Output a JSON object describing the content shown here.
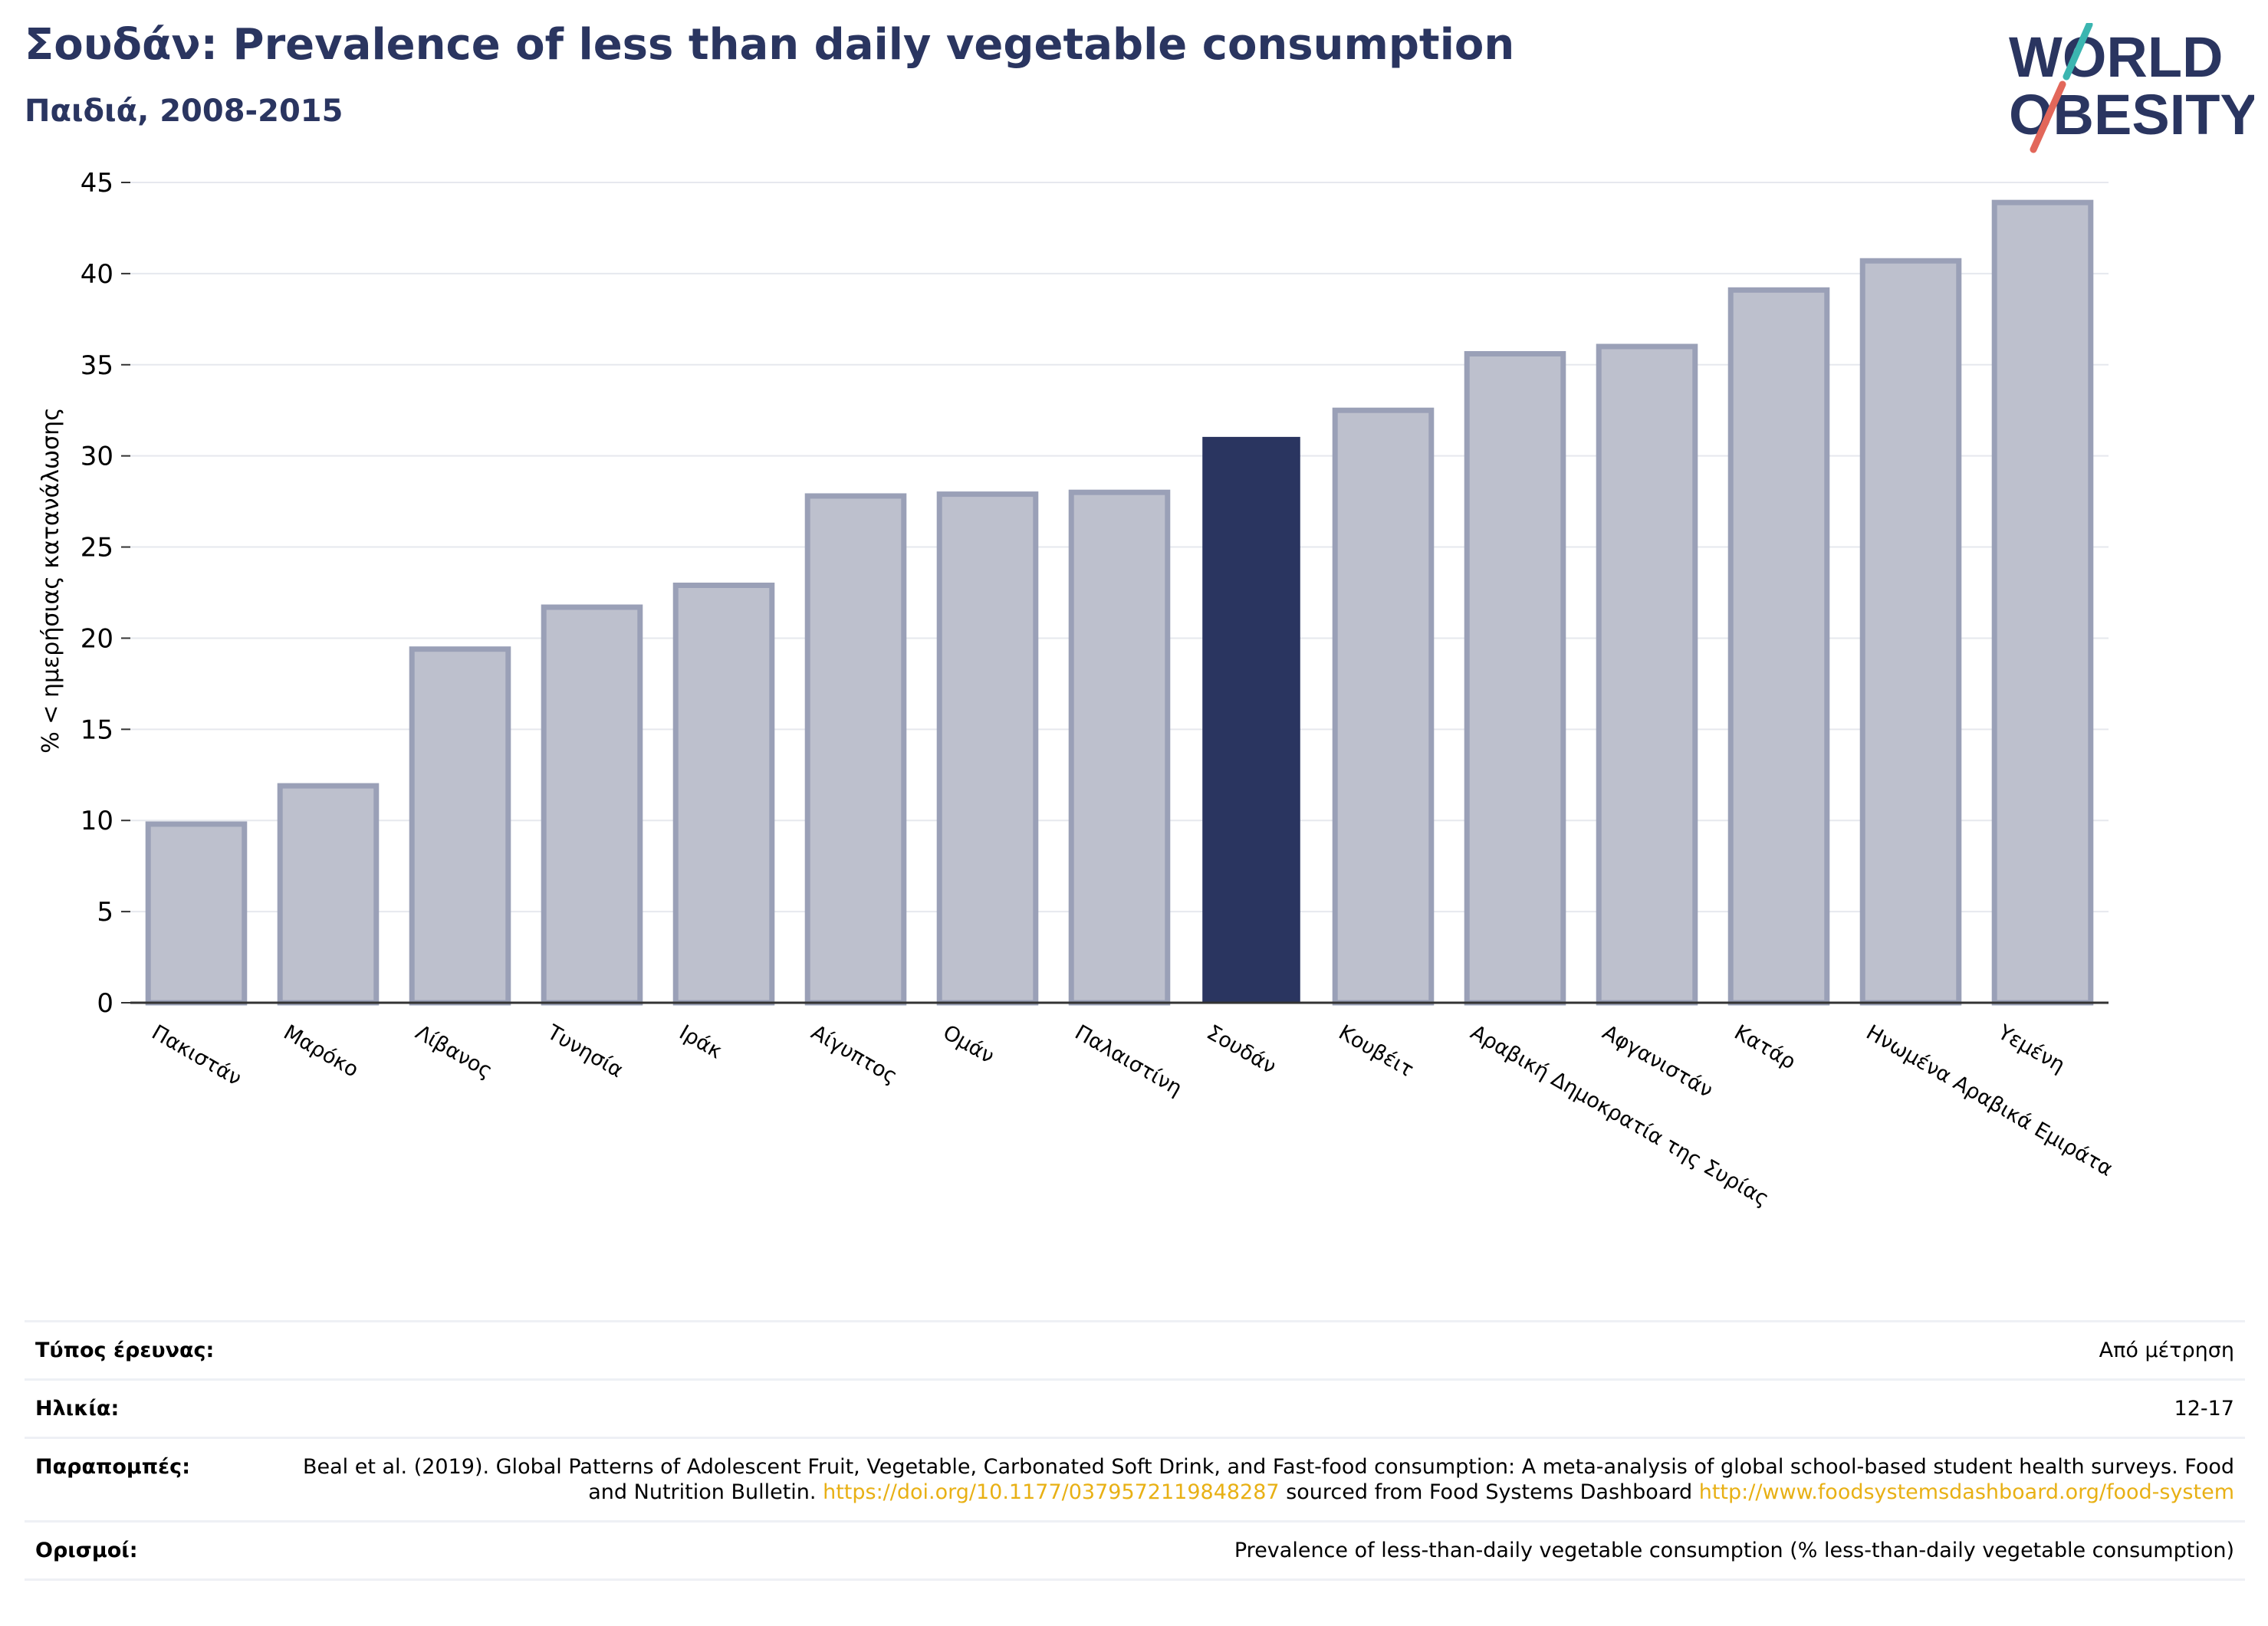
{
  "header": {
    "title": "Σουδάν: Prevalence of less than daily vegetable consumption",
    "subtitle": "Παιδιά, 2008-2015"
  },
  "logo": {
    "line1": "WORLD",
    "line2": "OBESITY",
    "colors": {
      "navy": "#2a3560",
      "teal": "#3bb5b0",
      "coral": "#e2675a"
    }
  },
  "chart_data": {
    "type": "bar",
    "ylabel": "% < ημερήσιας κατανάλωσης",
    "xlabel": "",
    "ylim": [
      0,
      45
    ],
    "yticks": [
      0,
      5,
      10,
      15,
      20,
      25,
      30,
      35,
      40,
      45
    ],
    "grid": true,
    "categories": [
      "Πακιστάν",
      "Μαρόκο",
      "Λίβανος",
      "Τυνησία",
      "Ιράκ",
      "Αίγυπτος",
      "Ομάν",
      "Παλαιστίνη",
      "Σουδάν",
      "Κουβέιτ",
      "Αραβική Δημοκρατία της Συρίας",
      "Αφγανιστάν",
      "Κατάρ",
      "Ηνωμένα Αραβικά Εμιράτα",
      "Υεμένη"
    ],
    "values": [
      9.8,
      11.9,
      19.4,
      21.7,
      22.9,
      27.8,
      27.9,
      28.0,
      31.0,
      32.5,
      35.6,
      36.0,
      39.1,
      40.7,
      43.9
    ],
    "highlight": "Σουδάν",
    "colors": {
      "highlight": "#2a3560",
      "other_fill": "#bdc0cd",
      "other_stroke": "#9aa0b7",
      "grid": "#e6e8ee",
      "axis": "#333333"
    }
  },
  "info": {
    "survey_label": "Τύπος έρευνας:",
    "survey_value": "Από μέτρηση",
    "age_label": "Ηλικία:",
    "age_value": "12-17",
    "refs_label": "Παραπομπές:",
    "refs_text_1": "Beal et al. (2019). Global Patterns of Adolescent Fruit, Vegetable, Carbonated Soft Drink, and Fast-food consumption: A meta-analysis of global school-based student health surveys. Food and Nutrition Bulletin.",
    "refs_link_1": "https://doi.org/10.1177/0379572119848287",
    "refs_text_2": "sourced from Food Systems Dashboard",
    "refs_link_2": "http://www.foodsystemsdashboard.org/food-system",
    "defs_label": "Ορισμοί:",
    "defs_value": "Prevalence of less-than-daily vegetable consumption (% less-than-daily vegetable consumption)"
  }
}
